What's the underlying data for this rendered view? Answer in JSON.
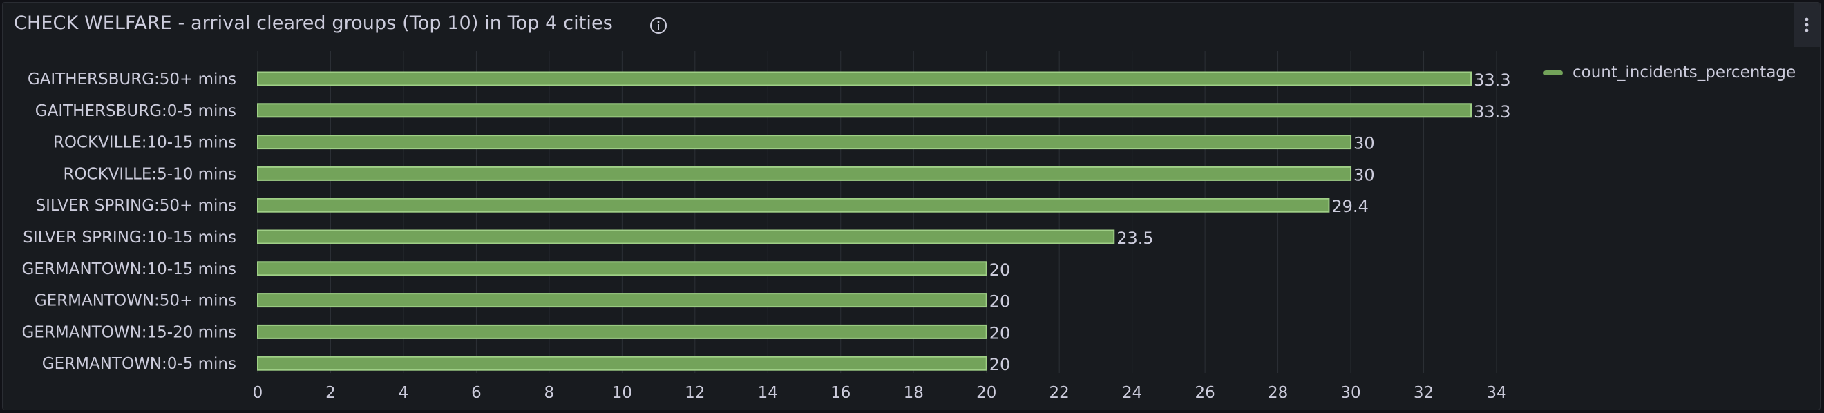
{
  "panel": {
    "title": "CHECK WELFARE - arrival cleared groups (Top 10) in Top 4 cities",
    "info_icon": "info-circle-icon",
    "menu_icon": "vertical-ellipsis-icon"
  },
  "colors": {
    "bar_fill": "#73a35a",
    "bar_stroke": "#9fcf86",
    "grid": "#2c3036",
    "text": "#ccccdc",
    "panel_bg": "#181b1f"
  },
  "legend": {
    "label": "count_incidents_percentage"
  },
  "chart_data": {
    "type": "bar",
    "orientation": "horizontal",
    "categories": [
      "GAITHERSBURG:50+ mins",
      "GAITHERSBURG:0-5 mins",
      "ROCKVILLE:10-15 mins",
      "ROCKVILLE:5-10 mins",
      "SILVER SPRING:50+ mins",
      "SILVER SPRING:10-15 mins",
      "GERMANTOWN:10-15 mins",
      "GERMANTOWN:50+ mins",
      "GERMANTOWN:15-20 mins",
      "GERMANTOWN:0-5 mins"
    ],
    "series": [
      {
        "name": "count_incidents_percentage",
        "values": [
          33.3,
          33.3,
          30,
          30,
          29.4,
          23.5,
          20,
          20,
          20,
          20
        ],
        "labels": [
          "33.3",
          "33.3",
          "30",
          "30",
          "29.4",
          "23.5",
          "20",
          "20",
          "20",
          "20"
        ]
      }
    ],
    "xlim": [
      0,
      34
    ],
    "xticks": [
      0,
      2,
      4,
      6,
      8,
      10,
      12,
      14,
      16,
      18,
      20,
      22,
      24,
      26,
      28,
      30,
      32,
      34
    ],
    "grid": true,
    "legend_position": "right"
  }
}
